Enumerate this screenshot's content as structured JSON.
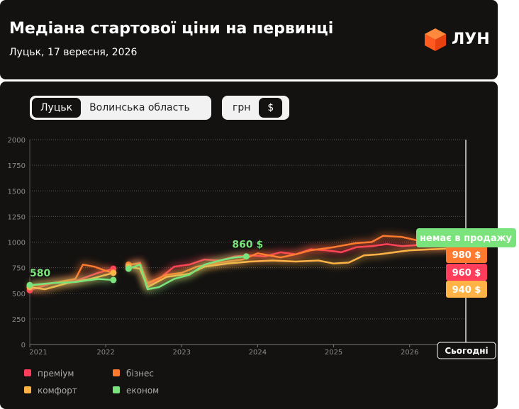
{
  "header": {
    "title": "Медіана стартової ціни на первинці",
    "subtitle": "Луцьк, 17 вересня, 2026",
    "logo": "ЛУН"
  },
  "controls": {
    "region": [
      "Луцьк",
      "Волинська область"
    ],
    "currency": [
      "грн",
      "$"
    ]
  },
  "chart_data": {
    "type": "line",
    "xlim": [
      2021,
      2026.74
    ],
    "xticks": [
      2021,
      2022,
      2023,
      2024,
      2025,
      2026
    ],
    "ylim": [
      0,
      2000
    ],
    "yticks": [
      0,
      250,
      500,
      750,
      1000,
      1250,
      1500,
      1750,
      2000
    ],
    "grid": true,
    "today_label": "Сьогодні",
    "unavailable_label": "немає в продажу",
    "series": [
      {
        "name": "преміум",
        "color": "#ff3d5a",
        "x": [
          2021.0,
          2021.3,
          2021.6,
          2021.9,
          2022.1,
          2022.2,
          2022.3,
          2022.45,
          2022.55,
          2022.7,
          2022.9,
          2023.1,
          2023.3,
          2023.5,
          2023.7,
          2023.9,
          2024.1,
          2024.3,
          2024.5,
          2024.7,
          2024.9,
          2025.1,
          2025.3,
          2025.5,
          2025.7,
          2025.9,
          2026.1,
          2026.3,
          2026.6
        ],
        "values": [
          530,
          600,
          620,
          700,
          740,
          null,
          770,
          800,
          580,
          640,
          760,
          780,
          830,
          820,
          860,
          870,
          860,
          900,
          880,
          930,
          920,
          900,
          950,
          960,
          980,
          960,
          970,
          960,
          960
        ],
        "value_labels": [
          null,
          null,
          null,
          null,
          null,
          null,
          null,
          null,
          null,
          null,
          null,
          null,
          null,
          null,
          null,
          null,
          null,
          null,
          null,
          null,
          null,
          null,
          null,
          null,
          null,
          null,
          null,
          null,
          "960 $"
        ]
      },
      {
        "name": "бізнес",
        "color": "#ff7a2f",
        "x": [
          2021.0,
          2021.3,
          2021.6,
          2021.7,
          2021.85,
          2022.0,
          2022.1,
          2022.2,
          2022.3,
          2022.45,
          2022.55,
          2022.8,
          2023.0,
          2023.2,
          2023.5,
          2023.8,
          2024.0,
          2024.3,
          2024.5,
          2024.7,
          2025.0,
          2025.3,
          2025.5,
          2025.65,
          2025.9,
          2026.2,
          2026.6
        ],
        "values": [
          570,
          600,
          640,
          780,
          760,
          720,
          700,
          null,
          780,
          790,
          600,
          680,
          700,
          760,
          800,
          830,
          890,
          850,
          880,
          920,
          950,
          990,
          1000,
          1060,
          1050,
          1000,
          980
        ],
        "value_labels": [
          null,
          null,
          null,
          null,
          null,
          null,
          null,
          null,
          null,
          null,
          null,
          null,
          null,
          null,
          null,
          null,
          null,
          null,
          null,
          null,
          null,
          null,
          null,
          null,
          null,
          null,
          "980 $"
        ]
      },
      {
        "name": "комфорт",
        "color": "#ffb347",
        "x": [
          2021.0,
          2021.2,
          2021.5,
          2021.8,
          2022.1,
          2022.2,
          2022.3,
          2022.45,
          2022.55,
          2022.8,
          2023.1,
          2023.3,
          2023.6,
          2023.9,
          2024.2,
          2024.5,
          2024.8,
          2025.0,
          2025.2,
          2025.4,
          2025.6,
          2025.8,
          2026.0,
          2026.3,
          2026.6
        ],
        "values": [
          560,
          540,
          600,
          640,
          700,
          null,
          760,
          740,
          560,
          660,
          690,
          760,
          790,
          810,
          820,
          810,
          820,
          790,
          800,
          870,
          880,
          900,
          920,
          930,
          940
        ],
        "value_labels": [
          null,
          null,
          null,
          null,
          null,
          null,
          null,
          null,
          null,
          null,
          null,
          null,
          null,
          null,
          null,
          null,
          null,
          null,
          null,
          null,
          null,
          null,
          null,
          null,
          "940 $"
        ]
      },
      {
        "name": "економ",
        "color": "#7be37b",
        "x": [
          2021.0,
          2021.3,
          2021.6,
          2021.9,
          2022.1,
          2022.2,
          2022.3,
          2022.45,
          2022.55,
          2022.7,
          2022.9,
          2023.1,
          2023.3,
          2023.5,
          2023.7,
          2023.85
        ],
        "values": [
          580,
          600,
          610,
          640,
          630,
          null,
          740,
          780,
          540,
          560,
          640,
          680,
          780,
          820,
          850,
          860
        ],
        "value_labels": [
          "580",
          null,
          null,
          null,
          null,
          null,
          null,
          null,
          null,
          null,
          null,
          null,
          null,
          null,
          null,
          "860 $"
        ]
      }
    ]
  }
}
